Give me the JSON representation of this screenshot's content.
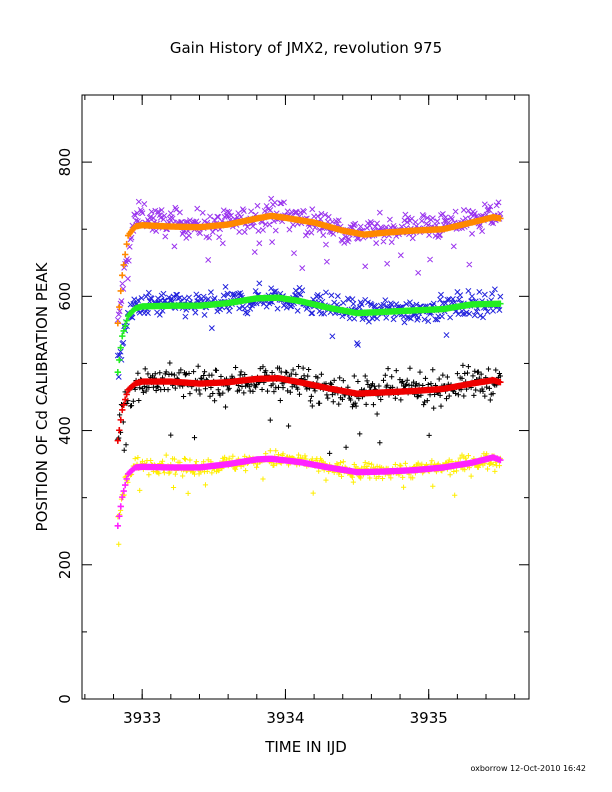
{
  "chart_data": {
    "type": "scatter",
    "title": "Gain History of JMX2, revolution 975",
    "xlabel": "TIME IN IJD",
    "ylabel": "POSITION OF Cd CALIBRATION PEAK",
    "xlim": [
      3932.58,
      3935.7
    ],
    "ylim": [
      0,
      900
    ],
    "x_ticks": [
      3933,
      3934,
      3935
    ],
    "y_ticks": [
      0,
      200,
      400,
      600,
      800
    ],
    "grid": false,
    "footer": "oxborrow 12-Oct-2010 16:42",
    "colors": {
      "purple": "#9933ee",
      "orange": "#ff8800",
      "blue": "#2222dd",
      "green": "#22ee22",
      "black": "#000000",
      "red": "#ee0000",
      "yellow": "#ffee00",
      "magenta": "#ff22ff"
    },
    "series": [
      {
        "marker": "cross-x",
        "color": "#9933ee",
        "noise": 14,
        "points": [
          [
            3932.83,
            555
          ],
          [
            3932.88,
            640
          ],
          [
            3932.95,
            715
          ],
          [
            3933.0,
            722
          ],
          [
            3933.1,
            712
          ],
          [
            3933.3,
            708
          ],
          [
            3933.5,
            706
          ],
          [
            3933.7,
            712
          ],
          [
            3933.9,
            725
          ],
          [
            3934.1,
            715
          ],
          [
            3934.3,
            705
          ],
          [
            3934.5,
            695
          ],
          [
            3934.7,
            700
          ],
          [
            3934.9,
            705
          ],
          [
            3935.1,
            705
          ],
          [
            3935.3,
            715
          ],
          [
            3935.45,
            722
          ],
          [
            3935.5,
            718
          ]
        ]
      },
      {
        "marker": "plus",
        "color": "#ff8800",
        "noise": 0,
        "points": [
          [
            3932.83,
            560
          ],
          [
            3932.86,
            630
          ],
          [
            3932.9,
            690
          ],
          [
            3932.95,
            704
          ],
          [
            3933.0,
            706
          ],
          [
            3933.2,
            704
          ],
          [
            3933.4,
            703
          ],
          [
            3933.6,
            707
          ],
          [
            3933.8,
            716
          ],
          [
            3933.9,
            720
          ],
          [
            3934.0,
            717
          ],
          [
            3934.2,
            710
          ],
          [
            3934.4,
            698
          ],
          [
            3934.55,
            692
          ],
          [
            3934.7,
            695
          ],
          [
            3934.9,
            698
          ],
          [
            3935.1,
            700
          ],
          [
            3935.3,
            710
          ],
          [
            3935.45,
            718
          ],
          [
            3935.5,
            716
          ]
        ]
      },
      {
        "marker": "cross-x",
        "color": "#2222dd",
        "noise": 13,
        "points": [
          [
            3932.83,
            490
          ],
          [
            3932.88,
            555
          ],
          [
            3932.95,
            585
          ],
          [
            3933.1,
            588
          ],
          [
            3933.3,
            588
          ],
          [
            3933.5,
            588
          ],
          [
            3933.7,
            592
          ],
          [
            3933.9,
            600
          ],
          [
            3934.1,
            595
          ],
          [
            3934.3,
            585
          ],
          [
            3934.5,
            576
          ],
          [
            3934.7,
            578
          ],
          [
            3934.9,
            580
          ],
          [
            3935.1,
            582
          ],
          [
            3935.3,
            590
          ],
          [
            3935.5,
            590
          ]
        ]
      },
      {
        "marker": "plus",
        "color": "#22ee22",
        "noise": 0,
        "points": [
          [
            3932.83,
            487
          ],
          [
            3932.86,
            540
          ],
          [
            3932.9,
            570
          ],
          [
            3932.95,
            582
          ],
          [
            3933.0,
            585
          ],
          [
            3933.2,
            586
          ],
          [
            3933.4,
            586
          ],
          [
            3933.6,
            590
          ],
          [
            3933.8,
            597
          ],
          [
            3933.95,
            598
          ],
          [
            3934.1,
            593
          ],
          [
            3934.3,
            583
          ],
          [
            3934.5,
            575
          ],
          [
            3934.7,
            577
          ],
          [
            3934.9,
            579
          ],
          [
            3935.1,
            581
          ],
          [
            3935.3,
            588
          ],
          [
            3935.5,
            589
          ]
        ]
      },
      {
        "marker": "plus",
        "color": "#000000",
        "noise": 17,
        "points": [
          [
            3932.83,
            395
          ],
          [
            3932.88,
            445
          ],
          [
            3932.95,
            470
          ],
          [
            3933.1,
            475
          ],
          [
            3933.3,
            472
          ],
          [
            3933.5,
            468
          ],
          [
            3933.7,
            472
          ],
          [
            3933.9,
            478
          ],
          [
            3934.1,
            470
          ],
          [
            3934.3,
            462
          ],
          [
            3934.5,
            455
          ],
          [
            3934.7,
            460
          ],
          [
            3934.9,
            462
          ],
          [
            3935.1,
            465
          ],
          [
            3935.3,
            472
          ],
          [
            3935.5,
            472
          ]
        ]
      },
      {
        "marker": "plus",
        "color": "#ee0000",
        "noise": 0,
        "points": [
          [
            3932.83,
            385
          ],
          [
            3932.86,
            430
          ],
          [
            3932.9,
            460
          ],
          [
            3932.95,
            470
          ],
          [
            3933.0,
            473
          ],
          [
            3933.2,
            473
          ],
          [
            3933.4,
            470
          ],
          [
            3933.6,
            472
          ],
          [
            3933.8,
            477
          ],
          [
            3933.95,
            478
          ],
          [
            3934.1,
            472
          ],
          [
            3934.3,
            463
          ],
          [
            3934.5,
            455
          ],
          [
            3934.7,
            457
          ],
          [
            3934.9,
            459
          ],
          [
            3935.1,
            462
          ],
          [
            3935.3,
            470
          ],
          [
            3935.45,
            475
          ],
          [
            3935.5,
            472
          ]
        ]
      },
      {
        "marker": "plus",
        "color": "#ffee00",
        "noise": 9,
        "points": [
          [
            3932.83,
            265
          ],
          [
            3932.88,
            320
          ],
          [
            3932.95,
            348
          ],
          [
            3933.1,
            350
          ],
          [
            3933.3,
            345
          ],
          [
            3933.5,
            348
          ],
          [
            3933.7,
            352
          ],
          [
            3933.9,
            358
          ],
          [
            3934.1,
            355
          ],
          [
            3934.3,
            345
          ],
          [
            3934.5,
            338
          ],
          [
            3934.7,
            340
          ],
          [
            3934.9,
            342
          ],
          [
            3935.1,
            345
          ],
          [
            3935.3,
            352
          ],
          [
            3935.5,
            358
          ]
        ]
      },
      {
        "marker": "plus",
        "color": "#ff22ff",
        "noise": 0,
        "points": [
          [
            3932.83,
            258
          ],
          [
            3932.86,
            300
          ],
          [
            3932.9,
            335
          ],
          [
            3932.95,
            345
          ],
          [
            3933.0,
            346
          ],
          [
            3933.2,
            345
          ],
          [
            3933.4,
            345
          ],
          [
            3933.6,
            350
          ],
          [
            3933.8,
            357
          ],
          [
            3933.9,
            358
          ],
          [
            3934.1,
            353
          ],
          [
            3934.3,
            345
          ],
          [
            3934.5,
            338
          ],
          [
            3934.7,
            339
          ],
          [
            3934.9,
            341
          ],
          [
            3935.1,
            345
          ],
          [
            3935.3,
            352
          ],
          [
            3935.45,
            360
          ],
          [
            3935.5,
            356
          ]
        ]
      }
    ]
  }
}
